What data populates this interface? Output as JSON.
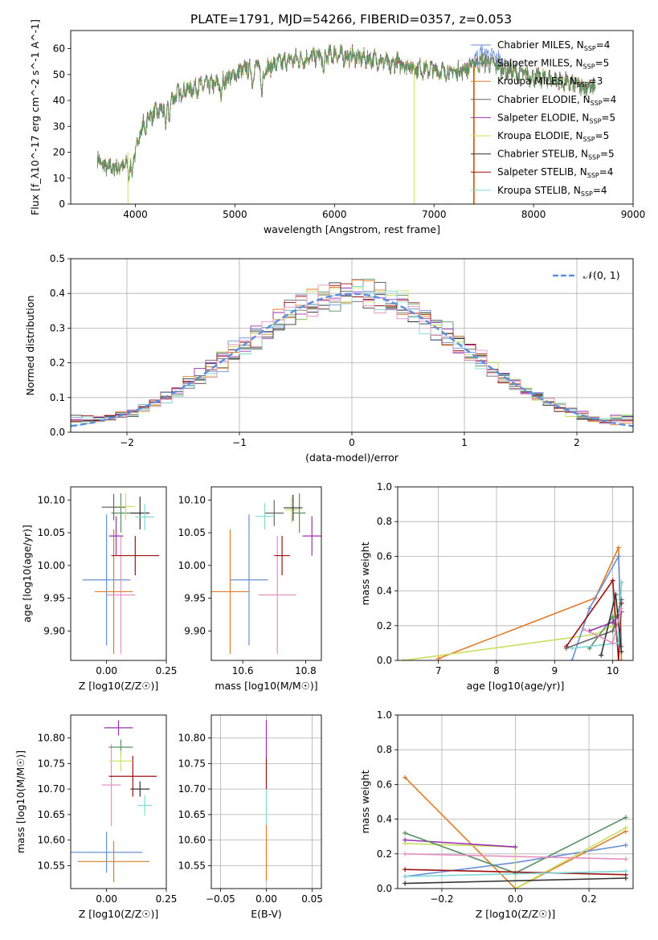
{
  "title": "PLATE=1791, MJD=54266, FIBERID=0357, z=0.053",
  "colors": {
    "Chabrier MILES": "#6b8fd6",
    "Salpeter MILES": "#5a8f63",
    "Kroupa MILES": "#e07b28",
    "Chabrier ELODIE": "#666666",
    "Salpeter ELODIE": "#9b30b0",
    "Kroupa ELODIE": "#c8e060",
    "Chabrier STELIB": "#333333",
    "Salpeter STELIB": "#a01010",
    "Kroupa STELIB": "#7fd8d8",
    "Pink": "#e890c0",
    "Normal": "#5a8fe0"
  },
  "chart_data": [
    {
      "id": "spectrum",
      "type": "line",
      "title": "PLATE=1791, MJD=54266, FIBERID=0357, z=0.053",
      "xlabel": "wavelength [Angstrom, rest frame]",
      "ylabel": "Flux [f_λ10^-17 erg cm^-2 s^-1 A^-1]",
      "xlim": [
        3350,
        9000
      ],
      "ylim": [
        0,
        67
      ],
      "xticks": [
        "4000",
        "5000",
        "6000",
        "7000",
        "8000",
        "9000"
      ],
      "yticks": [
        "0",
        "10",
        "20",
        "30",
        "40",
        "50",
        "60"
      ],
      "legend_position": "top-right",
      "legend": [
        {
          "name": "Chabrier MILES",
          "nssp": "4"
        },
        {
          "name": "Salpeter MILES",
          "nssp": "5"
        },
        {
          "name": "Kroupa MILES",
          "nssp": "3"
        },
        {
          "name": "Chabrier ELODIE",
          "nssp": "4"
        },
        {
          "name": "Salpeter ELODIE",
          "nssp": "5"
        },
        {
          "name": "Kroupa ELODIE",
          "nssp": "5"
        },
        {
          "name": "Chabrier STELIB",
          "nssp": "5"
        },
        {
          "name": "Salpeter STELIB",
          "nssp": "4"
        },
        {
          "name": "Kroupa STELIB",
          "nssp": "4"
        }
      ],
      "continuum": [
        [
          3620,
          17
        ],
        [
          3700,
          14
        ],
        [
          3800,
          14
        ],
        [
          3900,
          15
        ],
        [
          3950,
          17
        ],
        [
          4000,
          20
        ],
        [
          4050,
          28
        ],
        [
          4100,
          33
        ],
        [
          4200,
          35
        ],
        [
          4300,
          37
        ],
        [
          4400,
          42
        ],
        [
          4500,
          44
        ],
        [
          4600,
          45
        ],
        [
          4700,
          46
        ],
        [
          4800,
          46
        ],
        [
          4900,
          48
        ],
        [
          5000,
          50
        ],
        [
          5100,
          52
        ],
        [
          5200,
          53
        ],
        [
          5300,
          52
        ],
        [
          5400,
          54
        ],
        [
          5500,
          55
        ],
        [
          5600,
          56
        ],
        [
          5700,
          56
        ],
        [
          5800,
          57
        ],
        [
          5900,
          57
        ],
        [
          6000,
          58
        ],
        [
          6100,
          57
        ],
        [
          6200,
          57
        ],
        [
          6300,
          56
        ],
        [
          6400,
          56
        ],
        [
          6500,
          55
        ],
        [
          6600,
          55
        ],
        [
          6700,
          54
        ],
        [
          6800,
          53
        ],
        [
          6900,
          52
        ],
        [
          7000,
          52
        ],
        [
          7100,
          51
        ],
        [
          7200,
          51
        ],
        [
          7300,
          52
        ],
        [
          7400,
          54
        ],
        [
          7500,
          55
        ],
        [
          7600,
          54
        ],
        [
          7700,
          52
        ],
        [
          7800,
          51
        ],
        [
          7900,
          50
        ],
        [
          8000,
          49
        ],
        [
          8200,
          48
        ],
        [
          8400,
          46
        ],
        [
          8600,
          45
        ]
      ],
      "dips": [
        [
          3934,
          6
        ],
        [
          3968,
          8
        ],
        [
          4101,
          24
        ],
        [
          4304,
          26
        ],
        [
          4340,
          30
        ],
        [
          4861,
          37
        ],
        [
          5175,
          42
        ],
        [
          5270,
          36
        ],
        [
          5890,
          47
        ],
        [
          6563,
          48
        ],
        [
          6800,
          0
        ],
        [
          7400,
          0
        ]
      ]
    },
    {
      "id": "residuals",
      "type": "histogram",
      "xlabel": "(data-model)/error",
      "ylabel": "Normed distribution",
      "xlim": [
        -2.5,
        2.5
      ],
      "ylim": [
        0,
        0.5
      ],
      "xticks": [
        "−2",
        "−1",
        "0",
        "1",
        "2"
      ],
      "yticks": [
        "0.0",
        "0.1",
        "0.2",
        "0.3",
        "0.4",
        "0.5"
      ],
      "legend_position": "top-right",
      "legend_label": "𝒩(0, 1)",
      "grid": true,
      "bin_width": 0.1
    },
    {
      "id": "age_vs_Z",
      "type": "scatter",
      "xlabel": "Z [log10(Z/Z☉)]",
      "ylabel": "age [log10(age/yr)]",
      "xlim": [
        -0.15,
        0.25
      ],
      "ylim": [
        9.855,
        10.12
      ],
      "xticks": [
        "0.00",
        "0.25"
      ],
      "yticks": [
        "9.90",
        "9.95",
        "10.00",
        "10.05",
        "10.10"
      ],
      "points": [
        {
          "series": "Chabrier MILES",
          "x": 0.0,
          "y": 9.978,
          "ex": 0.1,
          "ey": 0.1
        },
        {
          "series": "Kroupa MILES",
          "x": 0.03,
          "y": 9.96,
          "ex": 0.08,
          "ey": 0.095
        },
        {
          "series": "Pink",
          "x": 0.06,
          "y": 9.955,
          "ex": 0.06,
          "ey": 0.09
        },
        {
          "series": "Salpeter ELODIE",
          "x": 0.04,
          "y": 10.045,
          "ex": 0.03,
          "ey": 0.03
        },
        {
          "series": "Salpeter STELIB",
          "x": 0.12,
          "y": 10.015,
          "ex": 0.1,
          "ey": 0.03
        },
        {
          "series": "Salpeter MILES",
          "x": 0.06,
          "y": 10.08,
          "ex": 0.04,
          "ey": 0.03
        },
        {
          "series": "Chabrier ELODIE",
          "x": 0.03,
          "y": 10.089,
          "ex": 0.05,
          "ey": 0.02
        },
        {
          "series": "Kroupa ELODIE",
          "x": 0.08,
          "y": 10.09,
          "ex": 0.04,
          "ey": 0.02
        },
        {
          "series": "Chabrier STELIB",
          "x": 0.14,
          "y": 10.08,
          "ex": 0.04,
          "ey": 0.025
        },
        {
          "series": "Kroupa STELIB",
          "x": 0.16,
          "y": 10.074,
          "ex": 0.04,
          "ey": 0.02
        }
      ]
    },
    {
      "id": "age_vs_mass",
      "type": "scatter",
      "xlabel": "mass [log10(M/M☉)]",
      "ylabel": "",
      "xlim": [
        10.5,
        10.85
      ],
      "ylim": [
        9.855,
        10.12
      ],
      "xticks": [
        "10.6",
        "10.8"
      ],
      "yticks": [
        "9.90",
        "9.95",
        "10.00",
        "10.05",
        "10.10"
      ],
      "points": [
        {
          "series": "Chabrier MILES",
          "x": 10.62,
          "y": 9.978,
          "ex": 0.06,
          "ey": 0.1
        },
        {
          "series": "Kroupa MILES",
          "x": 10.56,
          "y": 9.96,
          "ex": 0.06,
          "ey": 0.095
        },
        {
          "series": "Pink",
          "x": 10.71,
          "y": 9.955,
          "ex": 0.06,
          "ey": 0.09
        },
        {
          "series": "Salpeter ELODIE",
          "x": 10.82,
          "y": 10.045,
          "ex": 0.03,
          "ey": 0.03
        },
        {
          "series": "Salpeter STELIB",
          "x": 10.725,
          "y": 10.015,
          "ex": 0.025,
          "ey": 0.03
        },
        {
          "series": "Salpeter MILES",
          "x": 10.78,
          "y": 10.08,
          "ex": 0.02,
          "ey": 0.03
        },
        {
          "series": "Chabrier ELODIE",
          "x": 10.7,
          "y": 10.08,
          "ex": 0.03,
          "ey": 0.02
        },
        {
          "series": "Kroupa ELODIE",
          "x": 10.755,
          "y": 10.085,
          "ex": 0.02,
          "ey": 0.02
        },
        {
          "series": "Chabrier STELIB",
          "x": 10.76,
          "y": 10.088,
          "ex": 0.03,
          "ey": 0.02
        },
        {
          "series": "Kroupa STELIB",
          "x": 10.67,
          "y": 10.075,
          "ex": 0.03,
          "ey": 0.02
        }
      ]
    },
    {
      "id": "weight_vs_age",
      "type": "line",
      "xlabel": "age [log10(age/yr)]",
      "ylabel": "mass weight",
      "xlim": [
        6.3,
        10.35
      ],
      "ylim": [
        0,
        1.0
      ],
      "xticks": [
        "7",
        "8",
        "9",
        "10"
      ],
      "yticks": [
        "0.0",
        "0.2",
        "0.4",
        "0.6",
        "0.8",
        "1.0"
      ],
      "grid": true,
      "series": [
        {
          "name": "Kroupa MILES",
          "points": [
            [
              7.0,
              0.01
            ],
            [
              9.7,
              0.36
            ],
            [
              10.1,
              0.65
            ],
            [
              10.15,
              0.0
            ]
          ]
        },
        {
          "name": "Kroupa ELODIE",
          "points": [
            [
              6.4,
              0.0
            ],
            [
              9.7,
              0.15
            ],
            [
              10.0,
              0.2
            ],
            [
              10.05,
              0.35
            ]
          ]
        },
        {
          "name": "Chabrier MILES",
          "points": [
            [
              9.3,
              0.0
            ],
            [
              9.6,
              0.3
            ],
            [
              10.1,
              0.6
            ],
            [
              10.15,
              0.08
            ]
          ]
        },
        {
          "name": "Salpeter STELIB",
          "points": [
            [
              9.2,
              0.08
            ],
            [
              10.0,
              0.46
            ],
            [
              10.1,
              0.0
            ],
            [
              10.15,
              0.33
            ]
          ]
        },
        {
          "name": "Salpeter MILES",
          "points": [
            [
              9.6,
              0.07
            ],
            [
              10.0,
              0.25
            ],
            [
              10.1,
              0.1
            ],
            [
              10.15,
              0.45
            ]
          ]
        },
        {
          "name": "Kroupa STELIB",
          "points": [
            [
              9.3,
              0.07
            ],
            [
              10.1,
              0.1
            ],
            [
              10.15,
              0.45
            ]
          ]
        },
        {
          "name": "Salpeter ELODIE",
          "points": [
            [
              9.6,
              0.17
            ],
            [
              10.0,
              0.22
            ],
            [
              10.15,
              0.28
            ]
          ]
        },
        {
          "name": "Chabrier ELODIE",
          "points": [
            [
              9.2,
              0.07
            ],
            [
              10.0,
              0.17
            ],
            [
              10.15,
              0.35
            ]
          ]
        },
        {
          "name": "Chabrier STELIB",
          "points": [
            [
              9.8,
              0.03
            ],
            [
              10.05,
              0.38
            ],
            [
              10.15,
              0.05
            ]
          ]
        },
        {
          "name": "Pink",
          "points": [
            [
              9.5,
              0.18
            ],
            [
              10.0,
              0.1
            ],
            [
              10.15,
              0.3
            ]
          ]
        }
      ]
    },
    {
      "id": "mass_vs_Z",
      "type": "scatter",
      "xlabel": "Z [log10(Z/Z☉)]",
      "ylabel": "mass [log10(M/M☉)]",
      "xlim": [
        -0.15,
        0.25
      ],
      "ylim": [
        10.505,
        10.845
      ],
      "xticks": [
        "0.00",
        "0.25"
      ],
      "yticks": [
        "10.55",
        "10.60",
        "10.65",
        "10.70",
        "10.75",
        "10.80"
      ],
      "points": [
        {
          "series": "Chabrier MILES",
          "x": 0.0,
          "y": 10.576,
          "ex": 0.15,
          "ey": 0.04
        },
        {
          "series": "Kroupa MILES",
          "x": 0.03,
          "y": 10.558,
          "ex": 0.15,
          "ey": 0.04
        },
        {
          "series": "Pink",
          "x": 0.02,
          "y": 10.708,
          "ex": 0.04,
          "ey": 0.08
        },
        {
          "series": "Salpeter ELODIE",
          "x": 0.05,
          "y": 10.82,
          "ex": 0.06,
          "ey": 0.015
        },
        {
          "series": "Salpeter STELIB",
          "x": 0.11,
          "y": 10.725,
          "ex": 0.1,
          "ey": 0.04
        },
        {
          "series": "Salpeter MILES",
          "x": 0.06,
          "y": 10.782,
          "ex": 0.05,
          "ey": 0.015
        },
        {
          "series": "Kroupa ELODIE",
          "x": 0.06,
          "y": 10.755,
          "ex": 0.05,
          "ey": 0.02
        },
        {
          "series": "Chabrier STELIB",
          "x": 0.14,
          "y": 10.7,
          "ex": 0.04,
          "ey": 0.015
        },
        {
          "series": "Kroupa STELIB",
          "x": 0.16,
          "y": 10.668,
          "ex": 0.03,
          "ey": 0.02
        }
      ]
    },
    {
      "id": "mass_vs_ebv",
      "type": "scatter",
      "xlabel": "E(B-V)",
      "ylabel": "",
      "xlim": [
        -0.06,
        0.06
      ],
      "ylim": [
        10.505,
        10.845
      ],
      "xticks": [
        "−0.05",
        "0.00",
        "0.05"
      ],
      "yticks": [
        "10.55",
        "10.60",
        "10.65",
        "10.70",
        "10.75",
        "10.80"
      ],
      "grid": true,
      "segments": [
        {
          "series": "Kroupa MILES",
          "y1": 10.52,
          "y2": 10.63
        },
        {
          "series": "Kroupa STELIB",
          "y1": 10.63,
          "y2": 10.7
        },
        {
          "series": "Salpeter STELIB",
          "y1": 10.7,
          "y2": 10.76
        },
        {
          "series": "Salpeter ELODIE",
          "y1": 10.76,
          "y2": 10.835
        }
      ]
    },
    {
      "id": "weight_vs_Z",
      "type": "line",
      "xlabel": "Z [log10(Z/Z☉)]",
      "ylabel": "mass weight",
      "xlim": [
        -0.32,
        0.32
      ],
      "ylim": [
        0,
        1.0
      ],
      "xticks": [
        "−0.2",
        "0.0",
        "0.2"
      ],
      "yticks": [
        "0.0",
        "0.2",
        "0.4",
        "0.6",
        "0.8",
        "1.0"
      ],
      "grid": true,
      "series": [
        {
          "name": "Kroupa MILES",
          "points": [
            [
              -0.3,
              0.64
            ],
            [
              0.0,
              0.0
            ],
            [
              0.3,
              0.33
            ]
          ]
        },
        {
          "name": "Chabrier MILES",
          "points": [
            [
              -0.3,
              0.07
            ],
            [
              0.0,
              0.15
            ],
            [
              0.3,
              0.25
            ]
          ]
        },
        {
          "name": "Kroupa ELODIE",
          "points": [
            [
              -0.3,
              0.26
            ],
            [
              0.0,
              0.24
            ],
            [
              0.0,
              0.0
            ],
            [
              0.3,
              0.35
            ]
          ]
        },
        {
          "name": "Salpeter ELODIE",
          "points": [
            [
              -0.3,
              0.28
            ],
            [
              0.0,
              0.24
            ]
          ]
        },
        {
          "name": "Salpeter MILES",
          "points": [
            [
              -0.3,
              0.32
            ],
            [
              0.0,
              0.09
            ],
            [
              0.3,
              0.41
            ]
          ]
        },
        {
          "name": "Pink",
          "points": [
            [
              -0.3,
              0.2
            ],
            [
              0.3,
              0.17
            ]
          ]
        },
        {
          "name": "Salpeter STELIB",
          "points": [
            [
              -0.3,
              0.11
            ],
            [
              0.3,
              0.08
            ]
          ]
        },
        {
          "name": "Chabrier STELIB",
          "points": [
            [
              -0.3,
              0.03
            ],
            [
              0.3,
              0.06
            ]
          ]
        },
        {
          "name": "Kroupa STELIB",
          "points": [
            [
              -0.3,
              0.07
            ],
            [
              0.3,
              0.1
            ]
          ]
        }
      ]
    }
  ]
}
